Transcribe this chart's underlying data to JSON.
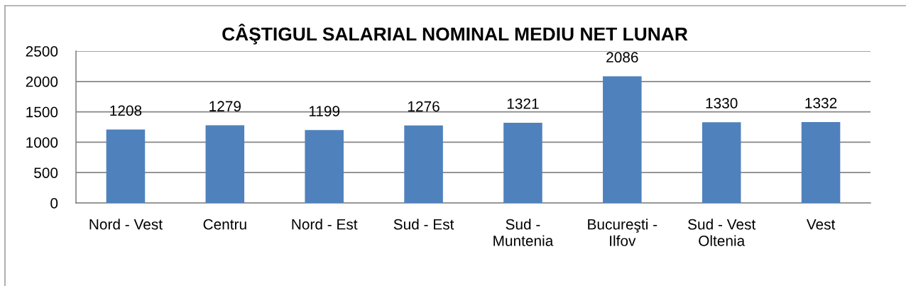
{
  "chart_data": {
    "type": "bar",
    "title": "CÂŞTIGUL SALARIAL NOMINAL MEDIU NET LUNAR",
    "categories": [
      "Nord - Vest",
      "Centru",
      "Nord - Est",
      "Sud - Est",
      "Sud -\nMuntenia",
      "Bucureşti -\nIlfov",
      "Sud - Vest\nOltenia",
      "Vest"
    ],
    "values": [
      1208,
      1279,
      1199,
      1276,
      1321,
      2086,
      1330,
      1332
    ],
    "color": "#4f81bd",
    "ylim": [
      0,
      2500
    ],
    "yticks": [
      0,
      500,
      1000,
      1500,
      2000,
      2500
    ],
    "grid": "y",
    "data_labels": true,
    "legend": false
  }
}
